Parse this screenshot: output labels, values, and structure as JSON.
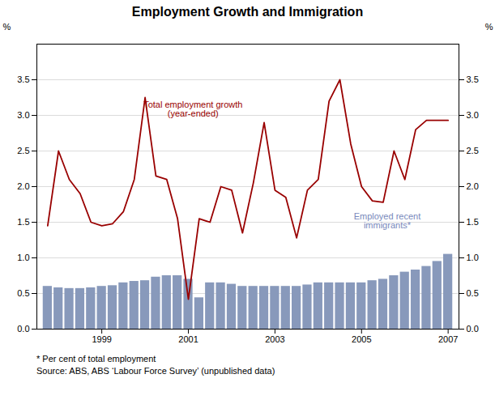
{
  "chart_data": {
    "type": "bar",
    "title": "Employment Growth and Immigration",
    "ylabel": "%",
    "y2label": "%",
    "x": [
      1997.75,
      1998.0,
      1998.25,
      1998.5,
      1998.75,
      1999.0,
      1999.25,
      1999.5,
      1999.75,
      2000.0,
      2000.25,
      2000.5,
      2000.75,
      2001.0,
      2001.25,
      2001.5,
      2001.75,
      2002.0,
      2002.25,
      2002.5,
      2002.75,
      2003.0,
      2003.25,
      2003.5,
      2003.75,
      2004.0,
      2004.25,
      2004.5,
      2004.75,
      2005.0,
      2005.25,
      2005.5,
      2005.75,
      2006.0,
      2006.25,
      2006.5,
      2006.75,
      2007.0
    ],
    "series": [
      {
        "type": "bar",
        "color": "#8899bb",
        "values": [
          0.6,
          0.58,
          0.57,
          0.57,
          0.58,
          0.6,
          0.61,
          0.65,
          0.67,
          0.68,
          0.73,
          0.75,
          0.75,
          0.7,
          0.44,
          0.65,
          0.65,
          0.63,
          0.6,
          0.6,
          0.6,
          0.6,
          0.6,
          0.6,
          0.62,
          0.65,
          0.65,
          0.65,
          0.65,
          0.65,
          0.68,
          0.7,
          0.75,
          0.8,
          0.83,
          0.88,
          0.95,
          1.05
        ]
      },
      {
        "type": "line",
        "color": "#990000",
        "axis": "y2",
        "values": [
          1.45,
          2.5,
          2.1,
          1.9,
          1.5,
          1.45,
          1.48,
          1.65,
          2.1,
          3.25,
          2.15,
          2.1,
          1.55,
          0.42,
          1.55,
          1.5,
          2.0,
          1.95,
          1.35,
          2.05,
          2.9,
          1.95,
          1.85,
          1.28,
          1.95,
          2.1,
          3.2,
          3.5,
          2.6,
          2.0,
          1.8,
          1.78,
          2.5,
          2.1,
          2.8,
          2.93,
          2.93,
          2.93
        ]
      }
    ],
    "xlim": [
      1997.5,
      2007.25
    ],
    "xticks": [
      1999,
      2001,
      2003,
      2005,
      2007
    ],
    "ylim": [
      0.0,
      4.0
    ],
    "yticks": [
      {
        "value": 0.0,
        "label": "0.0"
      },
      0.5,
      {
        "value": 1.0,
        "label": "1.0"
      },
      1.5,
      {
        "value": 2.0,
        "label": "2.0"
      },
      2.5,
      {
        "value": 3.0,
        "label": "3.0"
      },
      3.5
    ],
    "y2lim": [
      0.0,
      4.0
    ],
    "y2ticks": [
      {
        "value": 0.0,
        "label": "0.0"
      },
      0.5,
      {
        "value": 1.0,
        "label": "1.0"
      },
      1.5,
      {
        "value": 2.0,
        "label": "2.0"
      },
      2.5,
      {
        "value": 3.0,
        "label": "3.0"
      },
      3.5
    ],
    "grid": true,
    "annotations": [
      {
        "text": "Total employment growth\n(year-ended)",
        "color": "#990000"
      },
      {
        "text": "Employed recent\nimmigrants*",
        "color": "#7788bb"
      }
    ],
    "footnotes": [
      "*  Per cent of total employment",
      "Source: ABS, ABS ‘Labour Force Survey’ (unpublished data)"
    ]
  }
}
